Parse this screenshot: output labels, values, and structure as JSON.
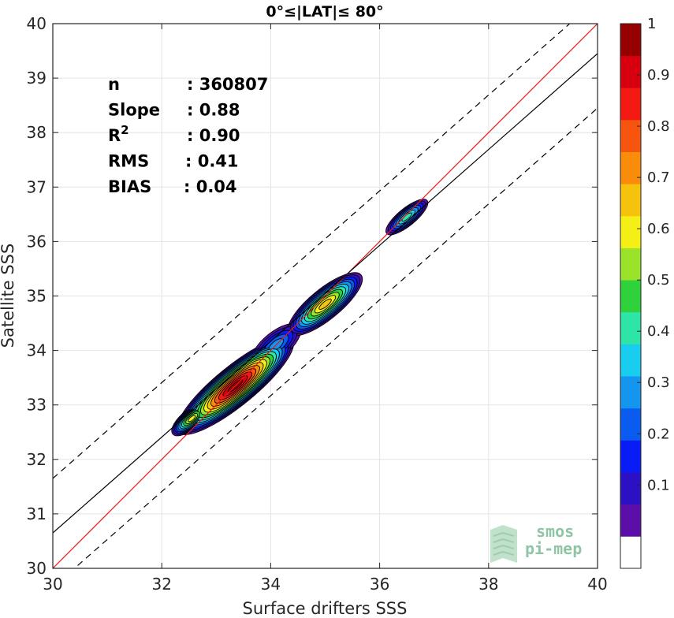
{
  "chart_data": {
    "type": "heatmap",
    "title": "0°≤|LAT|≤ 80°",
    "xlabel": "Surface drifters SSS",
    "ylabel": "Satellite SSS",
    "xlim": [
      30,
      40
    ],
    "ylim": [
      30,
      40
    ],
    "xticks": [
      30,
      32,
      34,
      36,
      38,
      40
    ],
    "yticks": [
      30,
      31,
      32,
      33,
      34,
      35,
      36,
      37,
      38,
      39,
      40
    ],
    "grid": true,
    "stats": [
      {
        "label": "n",
        "value": ": 360807"
      },
      {
        "label": "Slope",
        "value": ": 0.88"
      },
      {
        "label": "R",
        "sup": "2",
        "value": ": 0.90"
      },
      {
        "label": "RMS",
        "value": ": 0.41"
      },
      {
        "label": "BIAS",
        "value": ": 0.04"
      }
    ],
    "lines": [
      {
        "name": "1:1",
        "slope": 1.0,
        "intercept": 0.0,
        "color": "#e31a1c",
        "style": "solid"
      },
      {
        "name": "fit",
        "slope": 0.88,
        "intercept": 4.25,
        "color": "#000000",
        "style": "solid"
      },
      {
        "name": "fit+1",
        "slope": 0.88,
        "intercept": 5.25,
        "color": "#000000",
        "style": "dashed"
      },
      {
        "name": "fit-1",
        "slope": 0.88,
        "intercept": 3.25,
        "color": "#000000",
        "style": "dashed"
      }
    ],
    "density_peaks": [
      {
        "x": 33.4,
        "y": 33.4,
        "level": 1.0
      },
      {
        "x": 32.65,
        "y": 32.8,
        "level": 0.65
      },
      {
        "x": 35.25,
        "y": 35.1,
        "level": 0.68
      },
      {
        "x": 36.65,
        "y": 36.5,
        "level": 0.45
      }
    ],
    "colorbar": {
      "ticks": [
        0.1,
        0.2,
        0.3,
        0.4,
        0.5,
        0.6,
        0.7,
        0.8,
        0.9,
        1
      ],
      "tick_labels": [
        "0.1",
        "0.2",
        "0.3",
        "0.4",
        "0.5",
        "0.6",
        "0.7",
        "0.8",
        "0.9",
        "1"
      ],
      "colors": [
        "#ffffff",
        "#5b0fa8",
        "#2b10c4",
        "#0a1cf5",
        "#0a5cf0",
        "#1496ee",
        "#18cdf0",
        "#2ee5a8",
        "#2fd23a",
        "#9be22a",
        "#f4f016",
        "#f7c20e",
        "#f98c0a",
        "#f75410",
        "#f21a12",
        "#d8000e",
        "#960000"
      ]
    }
  },
  "watermark": {
    "line1": "smos",
    "line2": "pi-mep"
  }
}
